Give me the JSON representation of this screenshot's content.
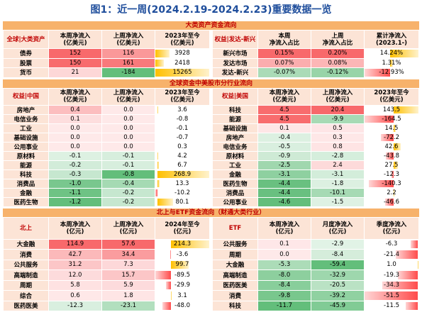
{
  "title": "图1：近一周(2024.2.19-2024.2.23)重要数据一览",
  "sections": [
    {
      "title": "大类资产资金流向",
      "tables": [
        {
          "columns": [
            "全球|大类资产",
            "本周净流入\n(亿美元)",
            "上周净流入\n(亿美元)",
            "2023年至今\n(亿美元)"
          ],
          "rows": [
            [
              "债券",
              "152",
              "116",
              "3928"
            ],
            [
              "股票",
              "150",
              "161",
              "2418"
            ],
            [
              "货币",
              "21",
              "-184",
              "15265"
            ]
          ]
        },
        {
          "columns": [
            "权益|发达-新兴",
            "本周\n净流入占比",
            "上周\n净流入占比",
            "累计净流入\n(2023.1-)"
          ],
          "rows": [
            [
              "新兴市场",
              "0.15%",
              "0.20%",
              "14.24%"
            ],
            [
              "发达市场",
              "0.07%",
              "0.08%",
              "1.31%"
            ],
            [
              "发达-新兴",
              "-0.07%",
              "-0.12%",
              "-12.93%"
            ]
          ]
        }
      ]
    },
    {
      "title": "全球资金中美股市分行业流向",
      "tables": [
        {
          "columns": [
            "权益|中国",
            "本周净流入\n(亿美元)",
            "上周净流入\n(亿美元)",
            "2023年至今\n(亿美元)"
          ],
          "rows": [
            [
              "房地产",
              "0.4",
              "0.0",
              "3.6"
            ],
            [
              "电信业务",
              "0.1",
              "0.0",
              "-0.8"
            ],
            [
              "工业",
              "0.0",
              "0.0",
              "-0.1"
            ],
            [
              "基础设施",
              "0.0",
              "0.0",
              "-0.7"
            ],
            [
              "公用事业",
              "0.0",
              "0.0",
              "0.3"
            ],
            [
              "原材料",
              "-0.1",
              "-0.1",
              "4.2"
            ],
            [
              "能源",
              "-0.2",
              "-0.1",
              "6.7"
            ],
            [
              "科技",
              "-0.3",
              "-0.8",
              "268.9"
            ],
            [
              "消费品",
              "-1.0",
              "-0.4",
              "13.3"
            ],
            [
              "金融",
              "-1.1",
              "-0.2",
              "-10.2"
            ],
            [
              "医药生物",
              "-1.2",
              "-0.2",
              "80.1"
            ]
          ]
        },
        {
          "columns": [
            "权益|美国",
            "本周净流入\n(亿美元)",
            "上周净流入\n(亿美元)",
            "2023年至今\n(亿美元)"
          ],
          "rows": [
            [
              "科技",
              "4.5",
              "20.4",
              "143.5"
            ],
            [
              "能源",
              "4.5",
              "-9.9",
              "-164.5"
            ],
            [
              "基础设施",
              "0.1",
              "0.5",
              "14.5"
            ],
            [
              "房地产",
              "-0.4",
              "0.3",
              "-72.2"
            ],
            [
              "电信业务",
              "-0.5",
              "0.8",
              "42.6"
            ],
            [
              "原材料",
              "-0.9",
              "-2.8",
              "-43.8"
            ],
            [
              "工业",
              "-2.5",
              "2.4",
              "27.5"
            ],
            [
              "金融",
              "-3.1",
              "-3.1",
              "-12.3"
            ],
            [
              "医药生物",
              "-4.4",
              "-1.8",
              "-140.3"
            ],
            [
              "消费品",
              "-4.4",
              "-10.1",
              "2.2"
            ],
            [
              "公用事业",
              "-4.6",
              "-1.5",
              "-46.6"
            ]
          ]
        }
      ]
    },
    {
      "title": "北上与ETF资金流向（财通大类行业）",
      "tables": [
        {
          "columns": [
            "北上",
            "本周净流入\n(亿元)",
            "上周净流入\n(亿元)",
            "2024年至今\n(亿元)"
          ],
          "rows": [
            [
              "大金融",
              "114.9",
              "57.6",
              "214.3"
            ],
            [
              "消费",
              "42.7",
              "34.4",
              "-3.6"
            ],
            [
              "公共服务",
              "31.2",
              "7.3",
              "99.7"
            ],
            [
              "高端制造",
              "12.0",
              "15.7",
              "-89.5"
            ],
            [
              "周期",
              "5.8",
              "5.9",
              "-29.9"
            ],
            [
              "综合",
              "0.6",
              "1.8",
              "3.1"
            ],
            [
              "医药医美",
              "-12.3",
              "-23.1",
              "-48.0"
            ]
          ]
        },
        {
          "columns": [
            "ETF",
            "本周净流入\n(亿元)",
            "月度净流入\n(亿元)",
            "季度净流入\n(亿元)"
          ],
          "rows": [
            [
              "公共服务",
              "0.1",
              "-2.9",
              "-6.3"
            ],
            [
              "周期",
              "0.0",
              "-8.4",
              "-21.4"
            ],
            [
              "大金融",
              "-5.3",
              "-59.4",
              "1.0"
            ],
            [
              "高端制造",
              "-8.0",
              "-32.9",
              "-19.3"
            ],
            [
              "医药医美",
              "-8.4",
              "-20.5",
              "-34.3"
            ],
            [
              "消费",
              "-9.8",
              "-39.2",
              "-51.5"
            ],
            [
              "科技",
              "-11.7",
              "-45.9",
              "-11.5"
            ]
          ]
        }
      ]
    }
  ]
}
